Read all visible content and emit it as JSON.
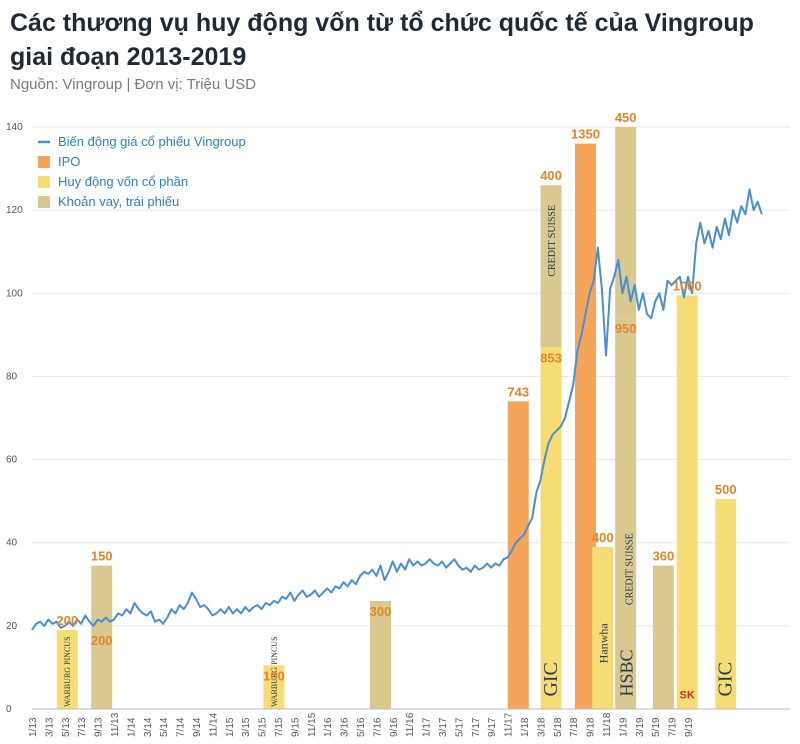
{
  "header": {
    "title": "Các thương vụ huy động vốn từ tổ chức quốc tế của Vingroup giai đoạn 2013-2019",
    "source": "Nguồn: Vingroup | Đơn vị: Triệu USD"
  },
  "colors": {
    "line": "#4a8fd0",
    "ipo": "#f5a55a",
    "equity": "#f6dc74",
    "loan": "#d9c88f",
    "label": "#e2862a",
    "grid": "#e6e6e6"
  },
  "chart_data": {
    "type": "bar+line",
    "ylim": [
      0,
      140
    ],
    "yticks": [
      0,
      20,
      40,
      60,
      80,
      100,
      120,
      140
    ],
    "grid": true,
    "legend_position": "top-left",
    "legend": [
      {
        "key": "line",
        "label": "Biến động giá cổ phiếu Vingroup"
      },
      {
        "key": "ipo",
        "label": "IPO"
      },
      {
        "key": "equity",
        "label": "Huy động vốn cổ phần"
      },
      {
        "key": "loan",
        "label": "Khoản vay, trái phiếu"
      }
    ],
    "xticks": [
      "1/13",
      "3/13",
      "5/13",
      "7/13",
      "9/13",
      "11/13",
      "1/14",
      "3/14",
      "5/14",
      "7/14",
      "9/14",
      "11/14",
      "1/15",
      "3/15",
      "5/15",
      "7/15",
      "9/15",
      "11/15",
      "1/16",
      "3/16",
      "5/16",
      "7/16",
      "9/16",
      "11/16",
      "1/17",
      "3/17",
      "5/17",
      "7/17",
      "9/17",
      "11/17",
      "1/18",
      "3/18",
      "5/18",
      "7/18",
      "9/18",
      "11/18",
      "1/19",
      "3/19",
      "5/19",
      "7/19",
      "9/19"
    ],
    "bars": [
      {
        "x": 4.3,
        "top": 19,
        "bottom": 0,
        "type": "equity",
        "label": "200",
        "label_pos": "top",
        "brand": "Warburg Pincus"
      },
      {
        "x": 8.5,
        "top": 34.5,
        "bottom": 19,
        "type": "loan",
        "label": "150",
        "label_pos": "top"
      },
      {
        "x": 8.5,
        "top": 19,
        "bottom": 0,
        "type": "loan",
        "label": "200",
        "label_pos": "in"
      },
      {
        "x": 29.5,
        "top": 10.5,
        "bottom": 0,
        "type": "equity",
        "label": "100",
        "label_pos": "in",
        "brand": "Warburg Pincus"
      },
      {
        "x": 42.5,
        "top": 26,
        "bottom": 0,
        "type": "loan",
        "label": "300",
        "label_pos": "in"
      },
      {
        "x": 59.3,
        "top": 74,
        "bottom": 0,
        "type": "ipo",
        "label": "743",
        "label_pos": "top"
      },
      {
        "x": 63.3,
        "top": 126,
        "bottom": 87,
        "type": "loan",
        "label": "400",
        "label_pos": "top",
        "brand": "Credit Suisse"
      },
      {
        "x": 63.3,
        "top": 87,
        "bottom": 0,
        "type": "equity",
        "label": "853",
        "label_pos": "in",
        "brand": "GIC"
      },
      {
        "x": 67.5,
        "top": 136,
        "bottom": 0,
        "type": "ipo",
        "label": "1350",
        "label_pos": "top"
      },
      {
        "x": 69.6,
        "top": 39,
        "bottom": 0,
        "type": "equity",
        "label": "400",
        "label_pos": "top",
        "brand": "Hanwha"
      },
      {
        "x": 72.4,
        "top": 140,
        "bottom": 94,
        "type": "loan",
        "label": "450",
        "label_pos": "top"
      },
      {
        "x": 72.4,
        "top": 94,
        "bottom": 0,
        "type": "loan",
        "label": "950",
        "label_pos": "in",
        "brand": "HSBC / Credit Suisse"
      },
      {
        "x": 77.0,
        "top": 34.5,
        "bottom": 0,
        "type": "loan",
        "label": "360",
        "label_pos": "top"
      },
      {
        "x": 79.9,
        "top": 99.5,
        "bottom": 0,
        "type": "equity",
        "label": "1000",
        "label_pos": "top",
        "brand": "SK"
      },
      {
        "x": 84.6,
        "top": 50.5,
        "bottom": 0,
        "type": "equity",
        "label": "500",
        "label_pos": "top",
        "brand": "GIC"
      }
    ],
    "brand_text": {
      "warburg": "WARBURG PINCUS",
      "credit_suisse": "CREDIT SUISSE",
      "gic": "GIC",
      "hanwha": "Hanwha",
      "hsbc": "HSBC",
      "sk": "SK"
    },
    "price_line": [
      [
        0,
        19
      ],
      [
        0.5,
        20.5
      ],
      [
        1,
        21
      ],
      [
        1.5,
        20
      ],
      [
        2,
        21.5
      ],
      [
        2.5,
        20.5
      ],
      [
        3,
        21
      ],
      [
        3.5,
        19.5
      ],
      [
        4,
        20
      ],
      [
        4.5,
        21
      ],
      [
        5,
        20
      ],
      [
        5.5,
        21.5
      ],
      [
        6,
        20.5
      ],
      [
        6.5,
        22.5
      ],
      [
        7,
        21
      ],
      [
        7.5,
        20
      ],
      [
        8,
        21.5
      ],
      [
        8.5,
        21
      ],
      [
        9,
        22
      ],
      [
        9.5,
        21
      ],
      [
        10,
        21.5
      ],
      [
        10.5,
        23
      ],
      [
        11,
        22.5
      ],
      [
        11.5,
        24
      ],
      [
        12,
        23
      ],
      [
        12.5,
        25.5
      ],
      [
        13,
        24
      ],
      [
        13.5,
        23
      ],
      [
        14,
        22.5
      ],
      [
        14.5,
        23.5
      ],
      [
        15,
        21
      ],
      [
        15.5,
        21.5
      ],
      [
        16,
        20.5
      ],
      [
        16.5,
        22
      ],
      [
        17,
        24
      ],
      [
        17.5,
        23
      ],
      [
        18,
        25
      ],
      [
        18.5,
        24
      ],
      [
        19,
        25.5
      ],
      [
        19.5,
        28
      ],
      [
        20,
        26.5
      ],
      [
        20.5,
        24.5
      ],
      [
        21,
        25
      ],
      [
        21.5,
        24
      ],
      [
        22,
        22.5
      ],
      [
        22.5,
        23
      ],
      [
        23,
        24
      ],
      [
        23.5,
        23
      ],
      [
        24,
        24.5
      ],
      [
        24.5,
        23
      ],
      [
        25,
        24
      ],
      [
        25.5,
        23
      ],
      [
        26,
        24.5
      ],
      [
        26.5,
        23.5
      ],
      [
        27,
        24.5
      ],
      [
        27.5,
        25
      ],
      [
        28,
        24
      ],
      [
        28.5,
        25.5
      ],
      [
        29,
        25
      ],
      [
        29.5,
        26
      ],
      [
        30,
        25.5
      ],
      [
        30.5,
        27
      ],
      [
        31,
        26.5
      ],
      [
        31.5,
        28
      ],
      [
        32,
        26
      ],
      [
        32.5,
        27.5
      ],
      [
        33,
        28.5
      ],
      [
        33.5,
        27
      ],
      [
        34,
        27.5
      ],
      [
        34.5,
        28.5
      ],
      [
        35,
        27
      ],
      [
        35.5,
        28
      ],
      [
        36,
        29
      ],
      [
        36.5,
        28
      ],
      [
        37,
        29.5
      ],
      [
        37.5,
        29
      ],
      [
        38,
        30.5
      ],
      [
        38.5,
        29.5
      ],
      [
        39,
        31
      ],
      [
        39.5,
        30
      ],
      [
        40,
        32
      ],
      [
        40.5,
        33
      ],
      [
        41,
        32.5
      ],
      [
        41.5,
        33.5
      ],
      [
        42,
        32
      ],
      [
        42.5,
        34.5
      ],
      [
        43,
        31
      ],
      [
        43.5,
        33
      ],
      [
        44,
        35.5
      ],
      [
        44.5,
        33
      ],
      [
        45,
        35
      ],
      [
        45.5,
        33.5
      ],
      [
        46,
        36
      ],
      [
        46.5,
        34.5
      ],
      [
        47,
        35.5
      ],
      [
        47.5,
        34.5
      ],
      [
        48,
        35
      ],
      [
        48.5,
        36
      ],
      [
        49,
        35
      ],
      [
        49.5,
        34.5
      ],
      [
        50,
        35.5
      ],
      [
        50.5,
        34
      ],
      [
        51,
        35
      ],
      [
        51.5,
        36
      ],
      [
        52,
        34.5
      ],
      [
        52.5,
        33.5
      ],
      [
        53,
        34
      ],
      [
        53.5,
        33
      ],
      [
        54,
        34.5
      ],
      [
        54.5,
        33.5
      ],
      [
        55,
        34
      ],
      [
        55.5,
        35
      ],
      [
        56,
        34
      ],
      [
        56.5,
        35
      ],
      [
        57,
        34.5
      ],
      [
        57.5,
        36
      ],
      [
        58,
        36.5
      ],
      [
        58.5,
        38
      ],
      [
        59,
        40
      ],
      [
        59.5,
        41
      ],
      [
        60,
        42
      ],
      [
        60.5,
        44
      ],
      [
        61,
        46
      ],
      [
        61.5,
        52
      ],
      [
        62,
        55
      ],
      [
        62.5,
        60
      ],
      [
        63,
        64
      ],
      [
        63.5,
        66
      ],
      [
        64,
        67
      ],
      [
        64.5,
        68
      ],
      [
        65,
        70
      ],
      [
        65.5,
        74
      ],
      [
        66,
        78
      ],
      [
        66.5,
        86
      ],
      [
        67,
        90
      ],
      [
        67.5,
        95
      ],
      [
        68,
        100
      ],
      [
        68.5,
        103
      ],
      [
        69,
        111
      ],
      [
        69.5,
        101
      ],
      [
        70,
        85
      ],
      [
        70.5,
        101
      ],
      [
        71,
        104
      ],
      [
        71.5,
        108
      ],
      [
        72,
        100
      ],
      [
        72.5,
        104
      ],
      [
        73,
        98
      ],
      [
        73.5,
        102
      ],
      [
        74,
        96
      ],
      [
        74.5,
        100
      ],
      [
        75,
        95
      ],
      [
        75.5,
        94
      ],
      [
        76,
        98
      ],
      [
        76.5,
        100
      ],
      [
        77,
        96
      ],
      [
        77.5,
        103
      ],
      [
        78,
        102
      ],
      [
        78.5,
        103
      ],
      [
        79,
        104
      ],
      [
        79.5,
        99
      ],
      [
        80,
        104
      ],
      [
        80.5,
        100
      ],
      [
        81,
        112
      ],
      [
        81.5,
        117
      ],
      [
        82,
        112
      ],
      [
        82.5,
        115
      ],
      [
        83,
        111
      ],
      [
        83.5,
        116
      ],
      [
        84,
        113
      ],
      [
        84.5,
        118
      ],
      [
        85,
        114
      ],
      [
        85.5,
        120
      ],
      [
        86,
        117
      ],
      [
        86.5,
        121
      ],
      [
        87,
        119
      ],
      [
        87.5,
        125
      ],
      [
        88,
        120
      ],
      [
        88.5,
        122
      ],
      [
        89,
        119
      ]
    ]
  }
}
